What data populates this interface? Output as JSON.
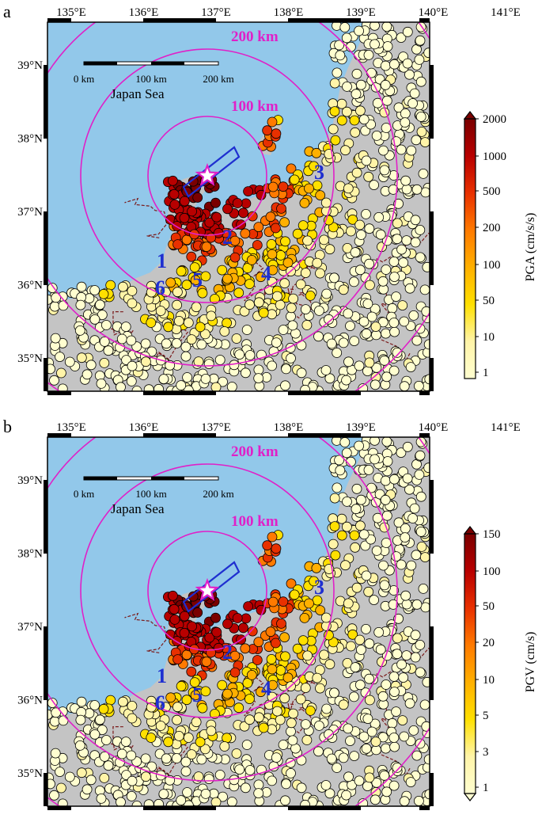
{
  "panels": [
    {
      "letter": "a",
      "colorbar_label": "PGA (cm/s/s)",
      "colorbar_ticks": [
        "2000",
        "1000",
        "500",
        "200",
        "100",
        "50",
        "10",
        "1"
      ],
      "top_triangle": true,
      "bottom_triangle": false
    },
    {
      "letter": "b",
      "colorbar_label": "PGV (cm/s)",
      "colorbar_ticks": [
        "150",
        "100",
        "50",
        "20",
        "10",
        "5",
        "3",
        "1"
      ],
      "top_triangle": true,
      "bottom_triangle": true
    }
  ],
  "map": {
    "lon_labels": [
      "135°E",
      "136°E",
      "137°E",
      "138°E",
      "139°E",
      "140°E",
      "141°E"
    ],
    "lat_labels": [
      "39°N",
      "38°N",
      "37°N",
      "36°N",
      "35°N"
    ],
    "circle_labels": [
      "200 km",
      "100 km"
    ],
    "sea_label": "Japan Sea",
    "scale_labels": [
      "0 km",
      "100 km",
      "200 km"
    ],
    "region_numbers": [
      "1",
      "2",
      "3",
      "4",
      "5",
      "6"
    ]
  },
  "colors": {
    "sea": "#92c8ea",
    "land": "#c4c4c4",
    "circles": "#e020c8",
    "region_numbers": "#1f2fd0",
    "fault_box": "#1f2fd0",
    "epicenter_star": "#e020c8",
    "ramp": [
      "#fffed0",
      "#fff4a8",
      "#ffe000",
      "#ffb000",
      "#ff7a00",
      "#e83000",
      "#b80000",
      "#7a0000"
    ]
  }
}
